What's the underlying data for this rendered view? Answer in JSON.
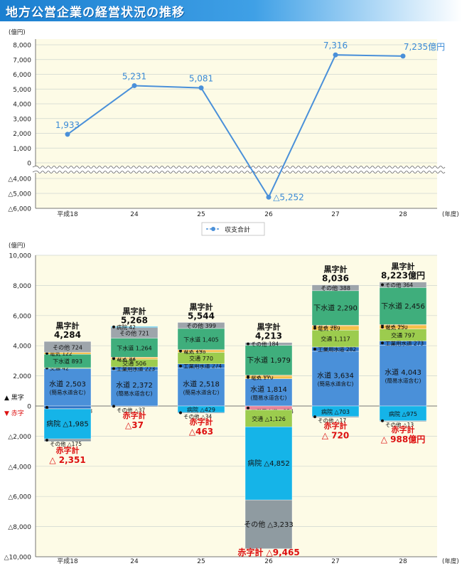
{
  "page": {
    "title": "地方公営企業の経営状況の推移"
  },
  "chart_data": [
    {
      "type": "line",
      "unit_label": "(億円)",
      "x_unit_label": "(年度)",
      "categories": [
        "平成18",
        "24",
        "25",
        "26",
        "27",
        "28"
      ],
      "series": [
        {
          "name": "収支合計",
          "values": [
            1933,
            5231,
            5081,
            -5252,
            7316,
            7235
          ],
          "value_labels": [
            "1,933",
            "5,231",
            "5,081",
            "△5,252",
            "7,316",
            "7,235億円"
          ]
        }
      ],
      "y_ticks": [
        {
          "v": 8000,
          "t": "8,000"
        },
        {
          "v": 7000,
          "t": "7,000"
        },
        {
          "v": 6000,
          "t": "6,000"
        },
        {
          "v": 5000,
          "t": "5,000"
        },
        {
          "v": 4000,
          "t": "4,000"
        },
        {
          "v": 3000,
          "t": "3,000"
        },
        {
          "v": 2000,
          "t": "2,000"
        },
        {
          "v": 1000,
          "t": "1,000"
        },
        {
          "v": 0,
          "t": "0"
        },
        {
          "v": -4000,
          "t": "△4,000"
        },
        {
          "v": -5000,
          "t": "△5,000"
        },
        {
          "v": -6000,
          "t": "△6,000"
        }
      ],
      "axis_break": [
        -3000,
        0
      ],
      "colors": {
        "line": "#4a90d9",
        "label": "#3a8ad6",
        "plot_bg": "#fdfbe6"
      }
    },
    {
      "type": "bar",
      "subtype": "stacked",
      "unit_label": "(億円)",
      "x_unit_label": "(年度)",
      "ylim": [
        -10000,
        10000
      ],
      "y_ticks": [
        {
          "v": 10000,
          "t": "10,000"
        },
        {
          "v": 8000,
          "t": "8,000"
        },
        {
          "v": 6000,
          "t": "6,000"
        },
        {
          "v": 4000,
          "t": "4,000"
        },
        {
          "v": 2000,
          "t": "2,000"
        },
        {
          "v": 0,
          "t": "0"
        },
        {
          "v": -2000,
          "t": "△2,000"
        },
        {
          "v": -4000,
          "t": "△4,000"
        },
        {
          "v": -6000,
          "t": "△6,000"
        },
        {
          "v": -8000,
          "t": "△8,000"
        },
        {
          "v": -10000,
          "t": "△10,000"
        }
      ],
      "legend_side": {
        "black": "▲ 黒字",
        "red": "▼ 赤字"
      },
      "categories": [
        "平成18",
        "24",
        "25",
        "26",
        "27",
        "28"
      ],
      "colors": {
        "water": "#4a90d9",
        "industrial_water": "#2e75c8",
        "transport": "#9ccc4e",
        "electricity": "#f5c04a",
        "gas": "#f4a93a",
        "sewer": "#3fae7c",
        "other": "#9ea5ab",
        "hospital": "#15b4e8",
        "other_neg": "#8f9ba1",
        "ind_neg": "#e8869a",
        "total_black": "#111111",
        "total_red": "#dd1010",
        "plot_bg": "#fdfbe6"
      },
      "bars": [
        {
          "category": "平成18",
          "surplus_label": "黒字計",
          "surplus_total": "4,284",
          "deficit_label": "赤字計",
          "deficit_total": "△ 2,351",
          "positive": [
            {
              "key": "water",
              "v": 2503,
              "label": "水道",
              "value": "2,503",
              "note": "(簡易水道含む)"
            },
            {
              "key": "transport",
              "v": 42,
              "label": "交通",
              "value": "42"
            },
            {
              "key": "sewer",
              "v": 893,
              "label": "下水道",
              "value": "893"
            },
            {
              "key": "electricity",
              "v": 122,
              "label": "電気",
              "value": "122"
            },
            {
              "key": "other",
              "v": 724,
              "label": "その他",
              "value": "724"
            }
          ],
          "negative": [
            {
              "key": "industrial_water",
              "v": 178,
              "label": "工業用水道",
              "value": "△178"
            },
            {
              "key": "gas",
              "v": 13,
              "label": "ガス",
              "value": "△13"
            },
            {
              "key": "hospital",
              "v": 1985,
              "label": "病院",
              "value": "△1,985"
            },
            {
              "key": "other_neg",
              "v": 175,
              "label": "その他",
              "value": "△175"
            }
          ]
        },
        {
          "category": "24",
          "surplus_label": "黒字計",
          "surplus_total": "5,268",
          "deficit_label": "赤字計",
          "deficit_total": "△37",
          "positive": [
            {
              "key": "water",
              "v": 2372,
              "label": "水道",
              "value": "2,372",
              "note": "(簡易水道含む)"
            },
            {
              "key": "industrial_water",
              "v": 223,
              "label": "工業用水道",
              "value": "223"
            },
            {
              "key": "transport",
              "v": 506,
              "label": "交通",
              "value": "506"
            },
            {
              "key": "electricity",
              "v": 88,
              "label": "電気",
              "value": "88"
            },
            {
              "key": "gas",
              "v": 52,
              "label": "ガス",
              "value": "52"
            },
            {
              "key": "sewer",
              "v": 1264,
              "label": "下水道",
              "value": "1,264"
            },
            {
              "key": "other",
              "v": 721,
              "label": "その他",
              "value": "721"
            },
            {
              "key": "hospital",
              "v": 42,
              "label": "病院",
              "value": "42"
            }
          ],
          "negative": [
            {
              "key": "other_neg",
              "v": 37,
              "label": "その他",
              "value": "△37"
            }
          ]
        },
        {
          "category": "25",
          "surplus_label": "黒字計",
          "surplus_total": "5,544",
          "deficit_label": "赤字計",
          "deficit_total": "△463",
          "positive": [
            {
              "key": "water",
              "v": 2518,
              "label": "水道",
              "value": "2,518",
              "note": "(簡易水道含む)"
            },
            {
              "key": "industrial_water",
              "v": 274,
              "label": "工業用水道",
              "value": "274"
            },
            {
              "key": "transport",
              "v": 770,
              "label": "交通",
              "value": "770"
            },
            {
              "key": "electricity",
              "v": 158,
              "label": "電気",
              "value": "158"
            },
            {
              "key": "gas",
              "v": 20,
              "label": "ガス",
              "value": "20"
            },
            {
              "key": "sewer",
              "v": 1405,
              "label": "下水道",
              "value": "1,405"
            },
            {
              "key": "other",
              "v": 399,
              "label": "その他",
              "value": "399"
            }
          ],
          "negative": [
            {
              "key": "hospital",
              "v": 429,
              "label": "病院",
              "value": "△429"
            },
            {
              "key": "other_neg",
              "v": 34,
              "label": "その他",
              "value": "△34"
            }
          ]
        },
        {
          "category": "26",
          "surplus_label": "黒字計",
          "surplus_total": "4,213",
          "deficit_label": "赤字計",
          "deficit_total": "△9,465",
          "positive": [
            {
              "key": "water",
              "v": 1814,
              "label": "水道",
              "value": "1,814",
              "note": "(簡易水道含む)"
            },
            {
              "key": "electricity",
              "v": 170,
              "label": "電気",
              "value": "170"
            },
            {
              "key": "gas",
              "v": 66,
              "label": "ガス",
              "value": "66"
            },
            {
              "key": "sewer",
              "v": 1979,
              "label": "下水道",
              "value": "1,979"
            },
            {
              "key": "other",
              "v": 184,
              "label": "その他",
              "value": "184"
            }
          ],
          "negative": [
            {
              "key": "ind_neg",
              "v": 254,
              "label": "工業用水道",
              "value": "△254"
            },
            {
              "key": "transport",
              "v": 1126,
              "label": "交通",
              "value": "△1,126"
            },
            {
              "key": "hospital",
              "v": 4852,
              "label": "病院",
              "value": "△4,852"
            },
            {
              "key": "other_neg",
              "v": 3233,
              "label": "その他",
              "value": "△3,233"
            }
          ]
        },
        {
          "category": "27",
          "surplus_label": "黒字計",
          "surplus_total": "8,036",
          "deficit_label": "赤字計",
          "deficit_total": "△ 720",
          "positive": [
            {
              "key": "water",
              "v": 3634,
              "label": "水道",
              "value": "3,634",
              "note": "(簡易水道含む)"
            },
            {
              "key": "industrial_water",
              "v": 282,
              "label": "工業用水道",
              "value": "282"
            },
            {
              "key": "transport",
              "v": 1117,
              "label": "交通",
              "value": "1,117"
            },
            {
              "key": "electricity",
              "v": 269,
              "label": "電気",
              "value": "269"
            },
            {
              "key": "gas",
              "v": 56,
              "label": "ガス",
              "value": "56"
            },
            {
              "key": "sewer",
              "v": 2290,
              "label": "下水道",
              "value": "2,290"
            },
            {
              "key": "other",
              "v": 388,
              "label": "その他",
              "value": "388"
            }
          ],
          "negative": [
            {
              "key": "hospital",
              "v": 703,
              "label": "病院",
              "value": "△703"
            },
            {
              "key": "other_neg",
              "v": 17,
              "label": "その他",
              "value": "△17"
            }
          ]
        },
        {
          "category": "28",
          "surplus_label": "黒字計",
          "surplus_total": "8,223億円",
          "deficit_label": "赤字計",
          "deficit_total": "△ 988億円",
          "positive": [
            {
              "key": "water",
              "v": 4043,
              "label": "水道",
              "value": "4,043",
              "note": "(簡易水道含む)"
            },
            {
              "key": "industrial_water",
              "v": 273,
              "label": "工業用水道",
              "value": "273"
            },
            {
              "key": "transport",
              "v": 797,
              "label": "交通",
              "value": "797"
            },
            {
              "key": "electricity",
              "v": 250,
              "label": "電気",
              "value": "250"
            },
            {
              "key": "gas",
              "v": 40,
              "label": "ガス",
              "value": "40"
            },
            {
              "key": "sewer",
              "v": 2456,
              "label": "下水道",
              "value": "2,456"
            },
            {
              "key": "other",
              "v": 364,
              "label": "その他",
              "value": "364"
            }
          ],
          "negative": [
            {
              "key": "hospital",
              "v": 975,
              "label": "病院",
              "value": "△975"
            },
            {
              "key": "other_neg",
              "v": 13,
              "label": "その他",
              "value": "△13"
            }
          ]
        }
      ]
    }
  ]
}
